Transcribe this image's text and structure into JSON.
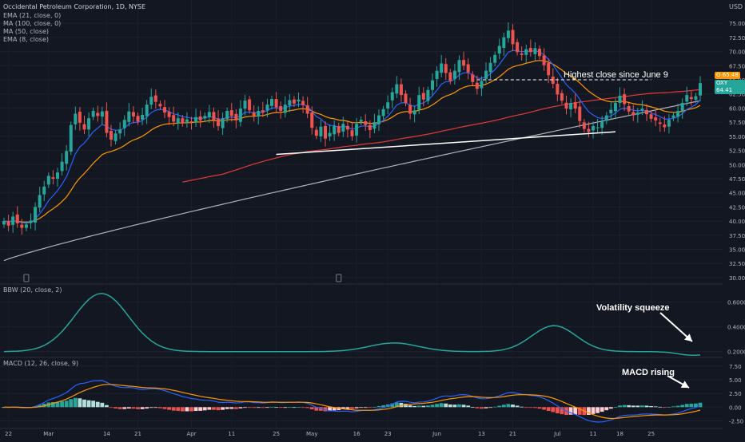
{
  "header": {
    "title": "Occidental Petroleum Corporation, 1D, NYSE",
    "indicators": [
      "EMA (21, close, 0)",
      "MA (100, close, 0)",
      "MA (50, close)",
      "EMA (8, close)"
    ],
    "currency": "USD"
  },
  "price_tags": {
    "symbol_short": "O",
    "symbol_price": "65.48",
    "ticker": "OXY",
    "last_price": "64.41"
  },
  "annotations": {
    "highest_close": "Highest close since June 9",
    "volatility": "Volatility squeeze",
    "macd": "MACD rising"
  },
  "bbw_panel": {
    "title": "BBW (20, close, 2)"
  },
  "macd_panel": {
    "title": "MACD (12, 26, close, 9)"
  },
  "colors": {
    "background": "#131722",
    "up": "#26a69a",
    "down": "#ef5350",
    "ema8": "#2962ff",
    "ema21": "#ff9800",
    "ma50": "#e53935",
    "ma100": "#b2b5be",
    "bbw": "#26a69a",
    "annotation": "#ffffff"
  },
  "chart_data": [
    {
      "type": "candlestick",
      "title": "Occidental Petroleum Corporation, 1D, NYSE",
      "x_tick_labels": [
        "22",
        "Mar",
        "14",
        "21",
        "Apr",
        "11",
        "25",
        "May",
        "16",
        "23",
        "Jun",
        "13",
        "21",
        "Jul",
        "11",
        "18",
        "25"
      ],
      "y_tick_labels": [
        "30.00",
        "32.50",
        "35.00",
        "37.50",
        "40.00",
        "42.50",
        "45.00",
        "47.50",
        "50.00",
        "52.50",
        "55.00",
        "57.50",
        "60.00",
        "62.50",
        "65.00",
        "67.50",
        "70.00",
        "72.50",
        "75.00"
      ],
      "ylim": [
        29.0,
        77.0
      ],
      "close": [
        40.0,
        39.2,
        40.8,
        39.6,
        38.8,
        39.4,
        40.1,
        42.5,
        44.6,
        46.1,
        48.0,
        47.5,
        48.6,
        50.5,
        52.4,
        57.0,
        59.0,
        57.4,
        56.2,
        58.2,
        59.5,
        58.6,
        59.4,
        55.6,
        54.4,
        55.5,
        56.2,
        57.9,
        59.4,
        58.5,
        57.6,
        58.8,
        60.6,
        62.0,
        61.1,
        60.3,
        59.2,
        58.4,
        57.6,
        58.2,
        57.3,
        58.0,
        57.6,
        58.4,
        57.8,
        58.6,
        59.3,
        57.9,
        56.8,
        58.2,
        59.5,
        58.6,
        57.8,
        59.9,
        61.3,
        59.6,
        58.6,
        59.5,
        59.2,
        60.6,
        61.6,
        60.1,
        59.5,
        60.6,
        61.4,
        60.8,
        61.5,
        60.5,
        59.0,
        56.5,
        55.1,
        56.7,
        54.6,
        55.6,
        56.8,
        55.6,
        57.2,
        56.2,
        55.0,
        57.2,
        57.9,
        57.0,
        56.1,
        57.5,
        58.7,
        59.8,
        61.0,
        62.8,
        64.2,
        62.3,
        60.9,
        59.0,
        59.6,
        62.3,
        61.5,
        63.2,
        64.9,
        66.6,
        67.9,
        66.2,
        64.8,
        66.6,
        68.5,
        67.5,
        66.3,
        64.6,
        63.4,
        64.8,
        66.6,
        68.0,
        69.4,
        71.0,
        72.5,
        73.7,
        71.3,
        69.9,
        69.4,
        70.4,
        69.9,
        70.6,
        69.2,
        67.6,
        65.8,
        64.3,
        62.4,
        61.3,
        59.9,
        60.9,
        59.9,
        57.7,
        56.3,
        55.8,
        56.8,
        56.6,
        57.6,
        58.7,
        59.7,
        60.9,
        62.2,
        60.7,
        59.4,
        58.7,
        59.2,
        59.9,
        58.9,
        58.1,
        57.8,
        57.2,
        56.6,
        57.9,
        58.7,
        59.5,
        60.9,
        62.3,
        61.6,
        62.1,
        64.41
      ]
    },
    {
      "type": "line",
      "title": "BBW (20, close, 2)",
      "y_tick_labels": [
        "0.2000",
        "0.4000",
        "0.6000"
      ],
      "ylim": [
        0.14,
        0.72
      ]
    },
    {
      "type": "bar",
      "title": "MACD (12, 26, close, 9)",
      "y_tick_labels": [
        "-2.50",
        "0.00",
        "2.50",
        "5.00",
        "7.50"
      ],
      "ylim": [
        -3.6,
        8.5
      ]
    }
  ]
}
